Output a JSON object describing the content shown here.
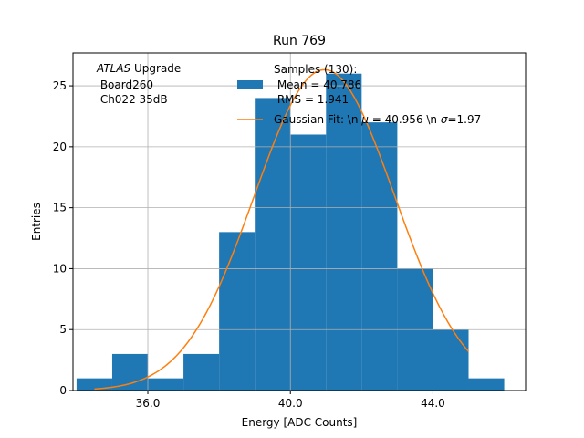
{
  "chart_data": {
    "type": "bar",
    "title": "Run 769",
    "xlabel": "Energy [ADC Counts]",
    "ylabel": "Entries",
    "xlim": [
      33.9,
      46.6
    ],
    "ylim": [
      0,
      27.7
    ],
    "xticks": [
      36.0,
      40.0,
      44.0
    ],
    "xtick_labels": [
      "36.0",
      "40.0",
      "44.0"
    ],
    "yticks": [
      0,
      5,
      10,
      15,
      20,
      25
    ],
    "ytick_labels": [
      "0",
      "5",
      "10",
      "15",
      "20",
      "25"
    ],
    "grid": true,
    "bin_edges": [
      34,
      35,
      36,
      37,
      38,
      39,
      40,
      41,
      42,
      43,
      44,
      45,
      46
    ],
    "counts": [
      1,
      3,
      1,
      3,
      13,
      24,
      21,
      26,
      22,
      10,
      5,
      1
    ],
    "fit": {
      "mu": 40.956,
      "sigma": 1.97,
      "x_range": [
        34.5,
        45.0
      ]
    },
    "annotation": {
      "line1_italic": "ATLAS",
      "line1_rest": " Upgrade",
      "line2": " Board260",
      "line3": " Ch022 35dB"
    },
    "legend": {
      "placement": "top-right",
      "hist_label_lines": [
        "Samples (130):",
        " Mean = 40.786",
        " RMS = 1.941"
      ],
      "fit_label_prefix": "Gaussian Fit: \\n ",
      "fit_label_mu_sym": "μ",
      "fit_label_mid": " = 40.956 \\n ",
      "fit_label_sigma_sym": "σ",
      "fit_label_suffix": "=1.97"
    },
    "colors": {
      "hist": "#1f77b4",
      "fit": "#ff7f0e",
      "grid": "#b0b0b0"
    }
  }
}
